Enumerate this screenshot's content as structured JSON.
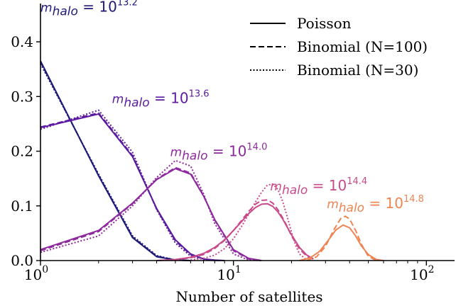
{
  "chart_data": {
    "type": "line",
    "xlabel": "Number of satellites",
    "ylabel": "",
    "xscale": "log",
    "xlim": [
      1,
      140
    ],
    "ylim": [
      0,
      0.47
    ],
    "grid": false,
    "legend_placement": "top-right",
    "x_tick_labels": [
      {
        "value": 1,
        "base": "10",
        "exp": "0"
      },
      {
        "value": 10,
        "base": "10",
        "exp": "1"
      },
      {
        "value": 100,
        "base": "10",
        "exp": "2"
      }
    ],
    "y_ticks": [
      0,
      0.1,
      0.2,
      0.3,
      0.4
    ],
    "y_tick_labels": [
      "0.0",
      "0.1",
      "0.2",
      "0.3",
      "0.4"
    ],
    "legend": [
      {
        "label": "Poisson",
        "style": "solid"
      },
      {
        "label": "Binomial (N=100)",
        "style": "dashed"
      },
      {
        "label": "Binomial (N=30)",
        "style": "dotted"
      }
    ],
    "groups": [
      {
        "annotation": {
          "prefix": "m",
          "sub": "halo",
          "eq": " = 10",
          "exp": "13.2"
        },
        "annotation_at": [
          1.0,
          0.455
        ],
        "color": "#1f1a7a",
        "curves": {
          "solid": {
            "x": [
              1,
              2,
              3,
              4,
              5,
              6
            ],
            "y": [
              0.365,
              0.155,
              0.042,
              0.007,
              0.001,
              0.0
            ]
          },
          "dashed": {
            "x": [
              1,
              2,
              3,
              4,
              5,
              6
            ],
            "y": [
              0.363,
              0.156,
              0.043,
              0.008,
              0.001,
              0.0
            ]
          },
          "dotted": {
            "x": [
              1,
              2,
              3,
              4,
              5,
              6
            ],
            "y": [
              0.36,
              0.158,
              0.045,
              0.009,
              0.001,
              0.0
            ]
          }
        }
      },
      {
        "annotation": {
          "prefix": "m",
          "sub": "halo",
          "eq": " = 10",
          "exp": "13.6"
        },
        "annotation_at": [
          2.35,
          0.288
        ],
        "color": "#5b1aa0",
        "curves": {
          "solid": {
            "x": [
              1,
              2,
              3,
              4,
              5,
              6,
              7,
              8,
              9
            ],
            "y": [
              0.243,
              0.268,
              0.19,
              0.095,
              0.038,
              0.012,
              0.003,
              0.001,
              0.0
            ]
          },
          "dashed": {
            "x": [
              1,
              2,
              3,
              4,
              5,
              6,
              7,
              8,
              9
            ],
            "y": [
              0.244,
              0.27,
              0.192,
              0.094,
              0.036,
              0.011,
              0.003,
              0.0,
              0.0
            ]
          },
          "dotted": {
            "x": [
              1,
              2,
              3,
              4,
              5,
              6,
              7,
              8,
              9
            ],
            "y": [
              0.24,
              0.275,
              0.198,
              0.093,
              0.032,
              0.008,
              0.002,
              0.0,
              0.0
            ]
          }
        }
      },
      {
        "annotation": {
          "prefix": "m",
          "sub": "halo",
          "eq": " = 10",
          "exp": "14.0"
        },
        "annotation_at": [
          4.7,
          0.191
        ],
        "color": "#8e2a9e",
        "curves": {
          "solid": {
            "x": [
              1,
              2,
              3,
              4,
              5,
              6,
              7,
              8,
              10,
              12,
              14
            ],
            "y": [
              0.02,
              0.055,
              0.105,
              0.148,
              0.168,
              0.158,
              0.118,
              0.075,
              0.02,
              0.004,
              0.0
            ]
          },
          "dashed": {
            "x": [
              1,
              2,
              3,
              4,
              5,
              6,
              7,
              8,
              10,
              12,
              14
            ],
            "y": [
              0.018,
              0.053,
              0.104,
              0.149,
              0.17,
              0.16,
              0.119,
              0.074,
              0.018,
              0.003,
              0.0
            ]
          },
          "dotted": {
            "x": [
              1,
              2,
              3,
              4,
              5,
              6,
              7,
              8,
              10,
              12,
              14
            ],
            "y": [
              0.015,
              0.045,
              0.1,
              0.152,
              0.183,
              0.173,
              0.122,
              0.068,
              0.012,
              0.001,
              0.0
            ]
          }
        }
      },
      {
        "annotation": {
          "prefix": "m",
          "sub": "halo",
          "eq": " = 10",
          "exp": "14.4"
        },
        "annotation_at": [
          15.5,
          0.128
        ],
        "color": "#c94a8a",
        "curves": {
          "solid": {
            "x": [
              4,
              5,
              6,
              7,
              8,
              9,
              10,
              11,
              12,
              13,
              14,
              15,
              16,
              17,
              18,
              19,
              20,
              22,
              24,
              26
            ],
            "y": [
              0.0,
              0.002,
              0.006,
              0.013,
              0.024,
              0.038,
              0.055,
              0.071,
              0.086,
              0.097,
              0.103,
              0.104,
              0.099,
              0.089,
              0.076,
              0.061,
              0.047,
              0.024,
              0.01,
              0.003
            ]
          },
          "dashed": {
            "x": [
              4,
              5,
              6,
              7,
              8,
              9,
              10,
              11,
              12,
              13,
              14,
              15,
              16,
              17,
              18,
              19,
              20,
              22,
              24,
              26
            ],
            "y": [
              0.0,
              0.001,
              0.005,
              0.011,
              0.022,
              0.037,
              0.055,
              0.073,
              0.09,
              0.103,
              0.11,
              0.111,
              0.105,
              0.093,
              0.078,
              0.062,
              0.045,
              0.021,
              0.008,
              0.002
            ]
          },
          "dotted": {
            "x": [
              6,
              7,
              8,
              9,
              10,
              11,
              12,
              13,
              14,
              15,
              16,
              17,
              18,
              19,
              20,
              21,
              22,
              24
            ],
            "y": [
              0.001,
              0.004,
              0.01,
              0.022,
              0.04,
              0.062,
              0.085,
              0.107,
              0.125,
              0.138,
              0.14,
              0.13,
              0.108,
              0.08,
              0.052,
              0.028,
              0.012,
              0.001
            ]
          }
        }
      },
      {
        "annotation": {
          "prefix": "m",
          "sub": "halo",
          "eq": " = 10",
          "exp": "14.8"
        },
        "annotation_at": [
          30.5,
          0.096
        ],
        "color": "#ee8452",
        "curves": {
          "solid": {
            "x": [
              22,
              25,
              28,
              31,
              34,
              37,
              40,
              43,
              46,
              50,
              55,
              60
            ],
            "y": [
              0.0,
              0.005,
              0.017,
              0.037,
              0.056,
              0.065,
              0.06,
              0.045,
              0.027,
              0.011,
              0.002,
              0.0
            ]
          },
          "dashed": {
            "x": [
              24,
              27,
              30,
              33,
              36,
              38,
              40,
              43,
              46,
              50,
              55
            ],
            "y": [
              0.0,
              0.007,
              0.026,
              0.055,
              0.077,
              0.081,
              0.076,
              0.055,
              0.03,
              0.008,
              0.0
            ]
          }
        }
      }
    ]
  }
}
